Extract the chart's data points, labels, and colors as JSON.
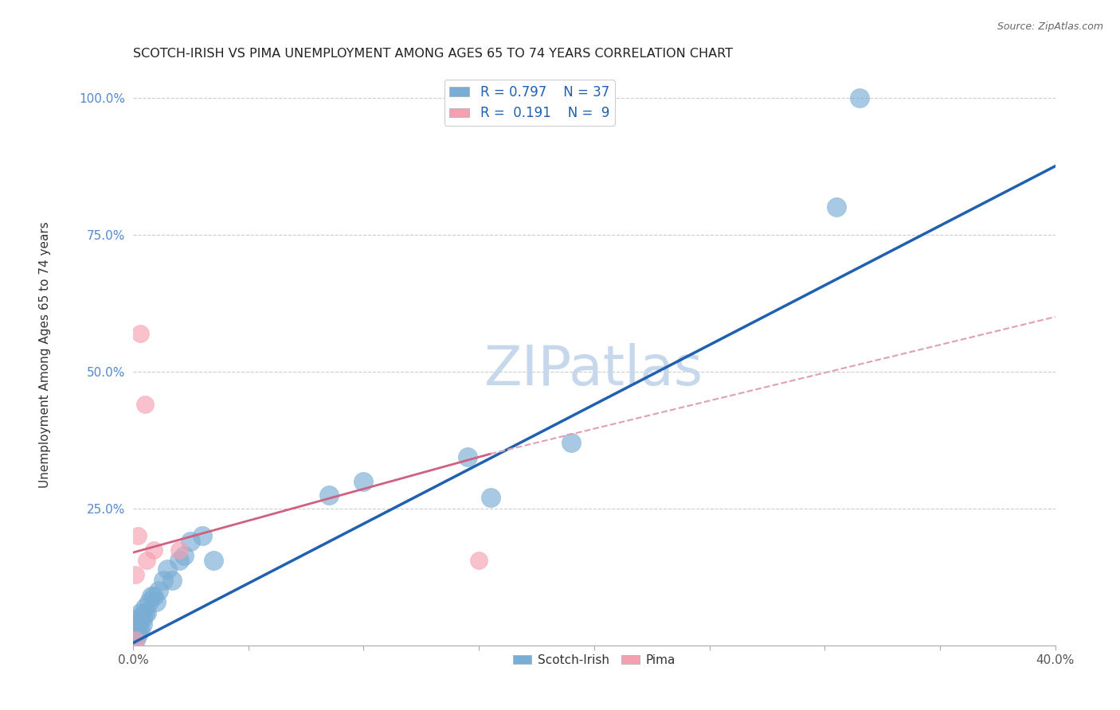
{
  "title": "SCOTCH-IRISH VS PIMA UNEMPLOYMENT AMONG AGES 65 TO 74 YEARS CORRELATION CHART",
  "source": "Source: ZipAtlas.com",
  "xlabel": "",
  "ylabel": "Unemployment Among Ages 65 to 74 years",
  "xlim": [
    0.0,
    0.4
  ],
  "ylim": [
    0.0,
    1.05
  ],
  "xticks": [
    0.0,
    0.05,
    0.1,
    0.15,
    0.2,
    0.25,
    0.3,
    0.35,
    0.4
  ],
  "xticklabels": [
    "0.0%",
    "",
    "",
    "",
    "",
    "",
    "",
    "",
    "40.0%"
  ],
  "yticks": [
    0.0,
    0.25,
    0.5,
    0.75,
    1.0
  ],
  "yticklabels": [
    "",
    "25.0%",
    "50.0%",
    "75.0%",
    "100.0%"
  ],
  "scotch_irish_R": 0.797,
  "scotch_irish_N": 37,
  "pima_R": 0.191,
  "pima_N": 9,
  "scotch_irish_color": "#7aadd4",
  "scotch_irish_line_color": "#2060b0",
  "pima_color": "#f5a0b0",
  "pima_line_color": "#d06080",
  "pima_dash_color": "#e0a0b0",
  "watermark": "ZIPatlas",
  "watermark_color": "#c8d8ec",
  "legend_color_blue": "#7aadd4",
  "legend_color_pink": "#f5a0b0",
  "scotch_irish_x": [
    0.001,
    0.001,
    0.001,
    0.001,
    0.001,
    0.001,
    0.002,
    0.002,
    0.002,
    0.003,
    0.003,
    0.003,
    0.004,
    0.004,
    0.005,
    0.005,
    0.006,
    0.007,
    0.008,
    0.009,
    0.01,
    0.011,
    0.013,
    0.015,
    0.017,
    0.02,
    0.022,
    0.025,
    0.03,
    0.035,
    0.085,
    0.1,
    0.145,
    0.155,
    0.19,
    0.305,
    0.315
  ],
  "scotch_irish_y": [
    0.01,
    0.02,
    0.02,
    0.03,
    0.04,
    0.05,
    0.02,
    0.03,
    0.04,
    0.03,
    0.05,
    0.06,
    0.04,
    0.05,
    0.06,
    0.07,
    0.06,
    0.08,
    0.09,
    0.09,
    0.08,
    0.1,
    0.12,
    0.14,
    0.12,
    0.155,
    0.165,
    0.19,
    0.2,
    0.155,
    0.275,
    0.3,
    0.345,
    0.27,
    0.37,
    0.8,
    1.0
  ],
  "pima_x": [
    0.001,
    0.001,
    0.002,
    0.003,
    0.005,
    0.006,
    0.009,
    0.02,
    0.15
  ],
  "pima_y": [
    0.01,
    0.13,
    0.2,
    0.57,
    0.44,
    0.155,
    0.175,
    0.175,
    0.155
  ],
  "scotch_irish_line_x": [
    0.0,
    0.4
  ],
  "scotch_irish_line_y": [
    0.005,
    0.875
  ],
  "pima_solid_line_x": [
    0.0,
    0.155
  ],
  "pima_solid_line_y": [
    0.17,
    0.35
  ],
  "pima_dash_line_x": [
    0.155,
    0.4
  ],
  "pima_dash_line_y": [
    0.35,
    0.6
  ]
}
